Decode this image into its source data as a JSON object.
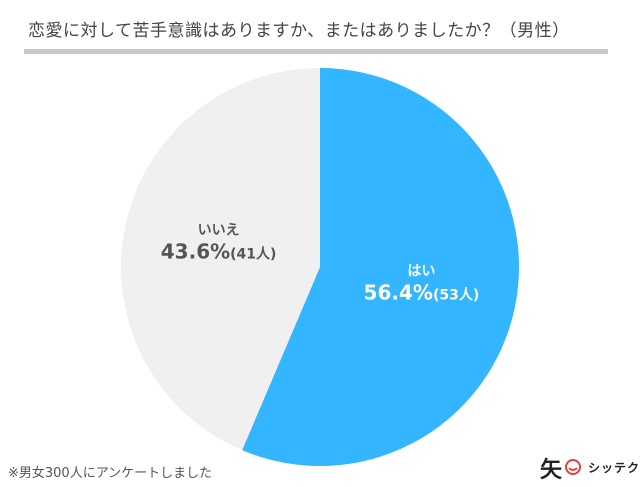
{
  "header": {
    "title": "恋愛に対して苦手意識はありますか、またはありましたか？（男性）"
  },
  "chart_data": {
    "type": "pie",
    "title": "恋愛に対して苦手意識はありますか、またはありましたか？（男性）",
    "slices": [
      {
        "label": "はい",
        "percent_text": "56.4%",
        "count_text": "(53人)",
        "value": 56.4,
        "count": 53,
        "color": "#33b5ff",
        "text_color": "#ffffff"
      },
      {
        "label": "いいえ",
        "percent_text": "43.6%",
        "count_text": "(41人)",
        "value": 43.6,
        "count": 41,
        "color": "#f0f0f0",
        "text_color": "#555555"
      }
    ]
  },
  "footer": {
    "note": "※男女300人にアンケートしました",
    "logo_text": "シッテク",
    "logo_kanji": "矢"
  }
}
